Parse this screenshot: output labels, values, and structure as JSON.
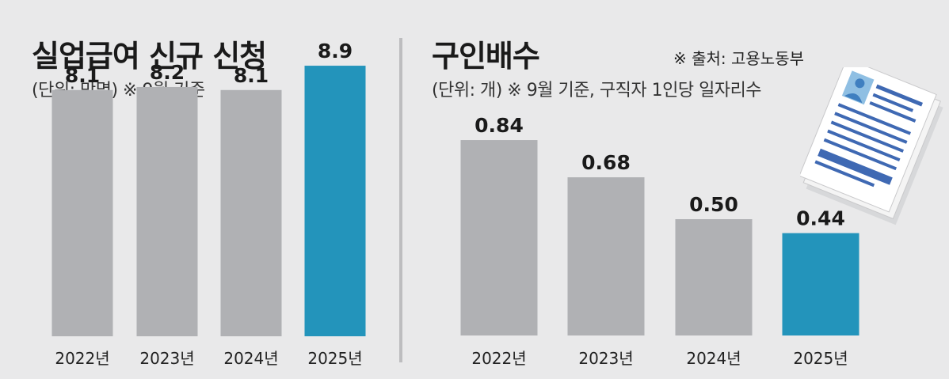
{
  "left_panel": {
    "title": "실업급여 신규 신청",
    "subtitle": "(단위: 만명) ※ 9월 기준"
  },
  "right_panel": {
    "title": "구인배수",
    "subtitle": "(단위: 개) ※ 9월 기준, 구직자 1인당 일자리수",
    "source": "※ 출처: 고용노동부"
  },
  "colors": {
    "gray_bar": "#b0b1b4",
    "highlight_bar": "#2394bb",
    "background": "#e9e9ea"
  },
  "icons": [
    "resume-document-icon"
  ],
  "chart_data": [
    {
      "type": "bar",
      "title": "실업급여 신규 신청",
      "subtitle": "(단위: 만명) ※ 9월 기준",
      "categories": [
        "2022년",
        "2023년",
        "2024년",
        "2025년"
      ],
      "values": [
        8.1,
        8.2,
        8.1,
        8.9
      ],
      "labels": [
        "8.1",
        "8.2",
        "8.1",
        "8.9"
      ],
      "highlight_index": 3,
      "ylim": [
        0,
        9.5
      ],
      "grid": false
    },
    {
      "type": "bar",
      "title": "구인배수",
      "subtitle": "(단위: 개) ※ 9월 기준, 구직자 1인당 일자리수",
      "categories": [
        "2022년",
        "2023년",
        "2024년",
        "2025년"
      ],
      "values": [
        0.84,
        0.68,
        0.5,
        0.44
      ],
      "labels": [
        "0.84",
        "0.68",
        "0.50",
        "0.44"
      ],
      "highlight_index": 3,
      "ylim": [
        0,
        1.0
      ],
      "grid": false
    }
  ]
}
